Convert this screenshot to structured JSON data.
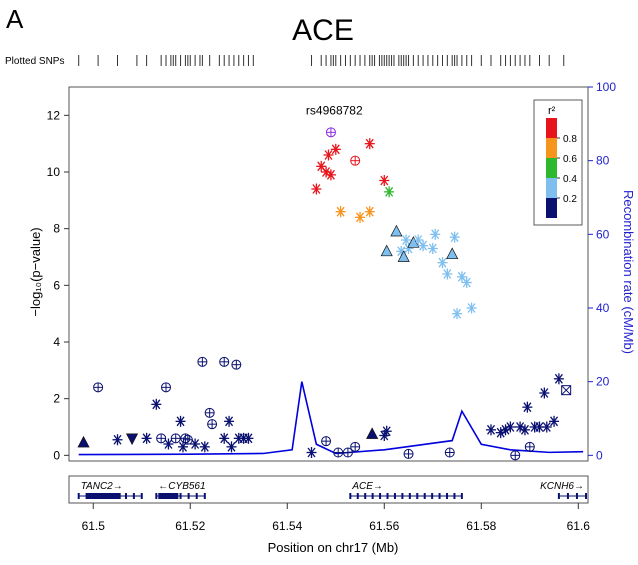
{
  "panel_label": "A",
  "chart_data": {
    "type": "scatter",
    "title": "ACE",
    "plotted_snps_label": "Plotted SNPs",
    "xlabel": "Position on chr17 (Mb)",
    "ylabel": "−log₁₀(p−value)",
    "y2label": "Recombination rate (cM/Mb)",
    "xlim": [
      61.495,
      61.602
    ],
    "ylim": [
      -0.2,
      13.0
    ],
    "y2lim": [
      -1.54,
      100
    ],
    "x_ticks": [
      61.5,
      61.52,
      61.54,
      61.56,
      61.58,
      61.6
    ],
    "x_tick_labels": [
      "61.5",
      "61.52",
      "61.54",
      "61.56",
      "61.58",
      "61.6"
    ],
    "y_ticks": [
      0,
      2,
      4,
      6,
      8,
      10,
      12
    ],
    "y_tick_labels": [
      "0",
      "2",
      "4",
      "6",
      "8",
      "10",
      "12"
    ],
    "y2_ticks": [
      0,
      20,
      40,
      60,
      80,
      100
    ],
    "y2_tick_labels": [
      "0",
      "20",
      "40",
      "60",
      "80",
      "100"
    ],
    "lead_snp": {
      "label": "rs4968782",
      "x": 61.549,
      "y": 11.4
    },
    "legend": {
      "title": "r²",
      "placement": "top-right",
      "ticks": [
        "0.8",
        "0.6",
        "0.4",
        "0.2"
      ],
      "colors": [
        "#e8141c",
        "#f7941d",
        "#2eb82e",
        "#7fbfef",
        "#0a1070"
      ]
    },
    "colors": {
      "r2_0.8_1.0": "#e8141c",
      "r2_0.6_0.8": "#f7941d",
      "r2_0.4_0.6": "#2eb82e",
      "r2_0.2_0.4": "#7fbfef",
      "r2_0.0_0.2": "#0a1070",
      "lead": "#8a2be2",
      "recombination": "#0000e0"
    },
    "snp_ticks_x": [
      61.497,
      61.501,
      61.505,
      61.509,
      61.511,
      61.514,
      61.515,
      61.516,
      61.5165,
      61.517,
      61.518,
      61.519,
      61.5195,
      61.52,
      61.521,
      61.522,
      61.5225,
      61.524,
      61.526,
      61.527,
      61.528,
      61.529,
      61.53,
      61.531,
      61.532,
      61.533,
      61.545,
      61.547,
      61.548,
      61.549,
      61.5495,
      61.55,
      61.551,
      61.552,
      61.553,
      61.554,
      61.555,
      61.556,
      61.557,
      61.5575,
      61.558,
      61.559,
      61.5595,
      61.56,
      61.5605,
      61.561,
      61.5615,
      61.562,
      61.563,
      61.5635,
      61.564,
      61.5645,
      61.565,
      61.566,
      61.567,
      61.568,
      61.569,
      61.57,
      61.571,
      61.572,
      61.573,
      61.574,
      61.5745,
      61.575,
      61.576,
      61.577,
      61.578,
      61.58,
      61.582,
      61.584,
      61.585,
      61.586,
      61.587,
      61.588,
      61.589,
      61.59,
      61.592,
      61.594,
      61.597
    ],
    "series": [
      {
        "name": "red",
        "points": [
          {
            "x": 61.546,
            "y": 9.4,
            "m": "star"
          },
          {
            "x": 61.547,
            "y": 10.2,
            "m": "star"
          },
          {
            "x": 61.548,
            "y": 10.0,
            "m": "star"
          },
          {
            "x": 61.5485,
            "y": 10.6,
            "m": "star"
          },
          {
            "x": 61.549,
            "y": 9.9,
            "m": "star"
          },
          {
            "x": 61.55,
            "y": 10.8,
            "m": "star"
          },
          {
            "x": 61.554,
            "y": 10.4,
            "m": "circle"
          },
          {
            "x": 61.557,
            "y": 11.0,
            "m": "star"
          },
          {
            "x": 61.56,
            "y": 9.7,
            "m": "star"
          }
        ]
      },
      {
        "name": "orange",
        "points": [
          {
            "x": 61.551,
            "y": 8.6,
            "m": "star"
          },
          {
            "x": 61.555,
            "y": 8.4,
            "m": "star"
          },
          {
            "x": 61.557,
            "y": 8.6,
            "m": "star"
          }
        ]
      },
      {
        "name": "green",
        "points": [
          {
            "x": 61.561,
            "y": 9.3,
            "m": "star"
          }
        ]
      },
      {
        "name": "light-blue",
        "points": [
          {
            "x": 61.5605,
            "y": 7.2,
            "m": "triangle"
          },
          {
            "x": 61.5625,
            "y": 7.9,
            "m": "triangle"
          },
          {
            "x": 61.5635,
            "y": 7.2,
            "m": "star"
          },
          {
            "x": 61.564,
            "y": 7.0,
            "m": "triangle"
          },
          {
            "x": 61.5645,
            "y": 7.6,
            "m": "star"
          },
          {
            "x": 61.565,
            "y": 7.3,
            "m": "star"
          },
          {
            "x": 61.566,
            "y": 7.5,
            "m": "triangle"
          },
          {
            "x": 61.567,
            "y": 7.6,
            "m": "star"
          },
          {
            "x": 61.568,
            "y": 7.4,
            "m": "star"
          },
          {
            "x": 61.57,
            "y": 7.3,
            "m": "star"
          },
          {
            "x": 61.5705,
            "y": 7.8,
            "m": "star"
          },
          {
            "x": 61.572,
            "y": 6.8,
            "m": "star"
          },
          {
            "x": 61.573,
            "y": 6.4,
            "m": "star"
          },
          {
            "x": 61.574,
            "y": 7.1,
            "m": "triangle"
          },
          {
            "x": 61.5745,
            "y": 7.7,
            "m": "star"
          },
          {
            "x": 61.575,
            "y": 5.0,
            "m": "star"
          },
          {
            "x": 61.576,
            "y": 6.3,
            "m": "star"
          },
          {
            "x": 61.577,
            "y": 6.1,
            "m": "star"
          },
          {
            "x": 61.578,
            "y": 5.2,
            "m": "star"
          }
        ]
      },
      {
        "name": "dark-blue",
        "points": [
          {
            "x": 61.498,
            "y": 0.45,
            "m": "triangle"
          },
          {
            "x": 61.501,
            "y": 2.4,
            "m": "circle"
          },
          {
            "x": 61.505,
            "y": 0.55,
            "m": "star"
          },
          {
            "x": 61.508,
            "y": 0.6,
            "m": "triangle-down"
          },
          {
            "x": 61.511,
            "y": 0.6,
            "m": "star"
          },
          {
            "x": 61.513,
            "y": 1.8,
            "m": "star"
          },
          {
            "x": 61.514,
            "y": 0.6,
            "m": "circle"
          },
          {
            "x": 61.515,
            "y": 2.4,
            "m": "circle"
          },
          {
            "x": 61.5155,
            "y": 0.4,
            "m": "star"
          },
          {
            "x": 61.517,
            "y": 0.6,
            "m": "circle"
          },
          {
            "x": 61.518,
            "y": 1.2,
            "m": "star"
          },
          {
            "x": 61.5185,
            "y": 0.3,
            "m": "star"
          },
          {
            "x": 61.519,
            "y": 0.6,
            "m": "circle"
          },
          {
            "x": 61.5195,
            "y": 0.55,
            "m": "circle"
          },
          {
            "x": 61.521,
            "y": 0.4,
            "m": "star"
          },
          {
            "x": 61.5225,
            "y": 3.3,
            "m": "circle"
          },
          {
            "x": 61.523,
            "y": 0.3,
            "m": "star"
          },
          {
            "x": 61.524,
            "y": 1.5,
            "m": "circle"
          },
          {
            "x": 61.5245,
            "y": 1.1,
            "m": "circle"
          },
          {
            "x": 61.527,
            "y": 3.3,
            "m": "circle"
          },
          {
            "x": 61.527,
            "y": 0.6,
            "m": "star"
          },
          {
            "x": 61.528,
            "y": 1.2,
            "m": "star"
          },
          {
            "x": 61.5285,
            "y": 0.3,
            "m": "star"
          },
          {
            "x": 61.5295,
            "y": 3.2,
            "m": "circle"
          },
          {
            "x": 61.53,
            "y": 0.6,
            "m": "star"
          },
          {
            "x": 61.531,
            "y": 0.6,
            "m": "star"
          },
          {
            "x": 61.532,
            "y": 0.6,
            "m": "star"
          },
          {
            "x": 61.545,
            "y": 0.1,
            "m": "star"
          },
          {
            "x": 61.548,
            "y": 0.5,
            "m": "circle"
          },
          {
            "x": 61.5505,
            "y": 0.1,
            "m": "circle"
          },
          {
            "x": 61.5525,
            "y": 0.1,
            "m": "circle"
          },
          {
            "x": 61.554,
            "y": 0.3,
            "m": "circle"
          },
          {
            "x": 61.5575,
            "y": 0.75,
            "m": "triangle"
          },
          {
            "x": 61.56,
            "y": 0.7,
            "m": "star"
          },
          {
            "x": 61.5605,
            "y": 0.85,
            "m": "star"
          },
          {
            "x": 61.565,
            "y": 0.05,
            "m": "circle"
          },
          {
            "x": 61.5735,
            "y": 0.1,
            "m": "circle"
          },
          {
            "x": 61.582,
            "y": 0.9,
            "m": "star"
          },
          {
            "x": 61.584,
            "y": 0.8,
            "m": "star"
          },
          {
            "x": 61.585,
            "y": 0.9,
            "m": "star"
          },
          {
            "x": 61.586,
            "y": 1.0,
            "m": "star"
          },
          {
            "x": 61.587,
            "y": 0.0,
            "m": "circle"
          },
          {
            "x": 61.588,
            "y": 1.0,
            "m": "star"
          },
          {
            "x": 61.589,
            "y": 0.9,
            "m": "star"
          },
          {
            "x": 61.5895,
            "y": 1.7,
            "m": "star"
          },
          {
            "x": 61.59,
            "y": 0.3,
            "m": "circle"
          },
          {
            "x": 61.591,
            "y": 1.0,
            "m": "star"
          },
          {
            "x": 61.592,
            "y": 1.0,
            "m": "star"
          },
          {
            "x": 61.593,
            "y": 2.2,
            "m": "star"
          },
          {
            "x": 61.5935,
            "y": 1.0,
            "m": "star"
          },
          {
            "x": 61.595,
            "y": 1.2,
            "m": "star"
          },
          {
            "x": 61.596,
            "y": 2.7,
            "m": "star"
          },
          {
            "x": 61.5975,
            "y": 2.3,
            "m": "square"
          }
        ]
      },
      {
        "name": "lead",
        "points": [
          {
            "x": 61.549,
            "y": 11.4,
            "m": "circle"
          }
        ]
      }
    ],
    "recombination_rate": {
      "x": [
        61.497,
        61.52,
        61.535,
        61.541,
        61.543,
        61.546,
        61.55,
        61.56,
        61.574,
        61.576,
        61.58,
        61.586,
        61.594,
        61.601
      ],
      "y": [
        0.2,
        0.3,
        0.5,
        1.5,
        20.0,
        3.0,
        0.5,
        1.5,
        4.0,
        12.0,
        3.0,
        1.5,
        0.8,
        1.0
      ]
    },
    "genes": [
      {
        "name": "TANC2",
        "label": "TANC2→",
        "start": 61.497,
        "end": 61.51
      },
      {
        "name": "CYB561",
        "label": "←CYB561",
        "start": 61.513,
        "end": 61.523
      },
      {
        "name": "ACE",
        "label": "ACE→",
        "start": 61.553,
        "end": 61.576
      },
      {
        "name": "KCNH6",
        "label": "KCNH6→",
        "start": 61.596,
        "end": 61.602
      }
    ]
  }
}
